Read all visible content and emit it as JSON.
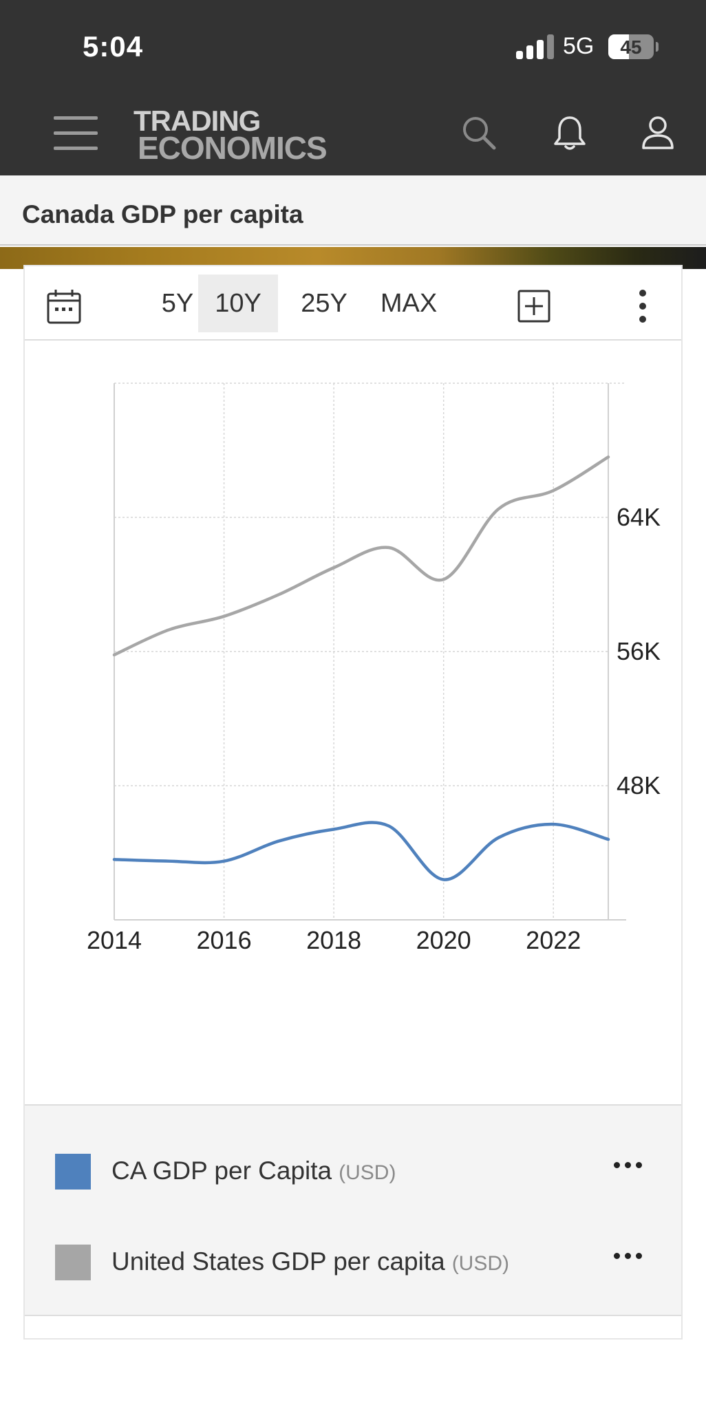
{
  "status_bar": {
    "time": "5:04",
    "network": "5G",
    "battery": "45",
    "battery_level": 45
  },
  "header": {
    "logo_line1": "TRADING",
    "logo_line2": "ECONOMICS",
    "icons": [
      "menu-icon",
      "search-icon",
      "bell-icon",
      "user-icon"
    ]
  },
  "page": {
    "title": "Canada GDP per capita"
  },
  "toolbar": {
    "ranges": [
      {
        "label": "5Y",
        "active": false
      },
      {
        "label": "10Y",
        "active": true
      },
      {
        "label": "25Y",
        "active": false
      },
      {
        "label": "MAX",
        "active": false
      }
    ],
    "icons": [
      "calendar-icon",
      "add-icon",
      "more-options-icon"
    ]
  },
  "chart_data": {
    "type": "line",
    "x": [
      2014,
      2015,
      2016,
      2017,
      2018,
      2019,
      2020,
      2021,
      2022,
      2023
    ],
    "x_ticks": [
      "2014",
      "2016",
      "2018",
      "2020",
      "2022"
    ],
    "y_ticks": [
      "48K",
      "56K",
      "64K"
    ],
    "ylim": [
      40000,
      72000
    ],
    "grid": true,
    "series": [
      {
        "name": "CA GDP per Capita",
        "unit": "(USD)",
        "color": "#4f81bd",
        "values": [
          43600,
          43500,
          43500,
          44700,
          45400,
          45600,
          42400,
          44900,
          45700,
          44800
        ]
      },
      {
        "name": "United States GDP per capita",
        "unit": "(USD)",
        "color": "#a6a6a6",
        "values": [
          55800,
          57300,
          58100,
          59400,
          61000,
          62200,
          60300,
          64500,
          65600,
          67600
        ]
      }
    ]
  }
}
